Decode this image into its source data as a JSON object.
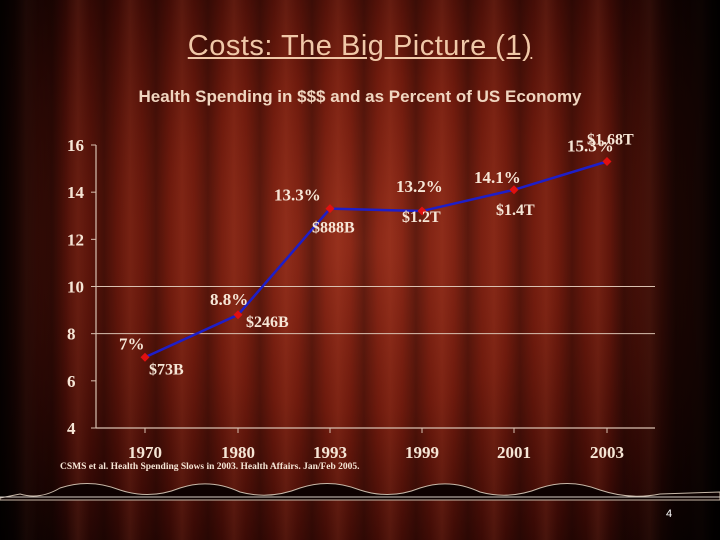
{
  "slide": {
    "title": "Costs: The Big Picture (1)",
    "subtitle": "Health Spending in $$$ and as Percent of US Economy",
    "source": "CSMS et al. Health Spending Slows in 2003. Health Affairs. Jan/Feb 2005.",
    "page_number": "4"
  },
  "colors": {
    "line": "#1e1ec8",
    "marker": "#e01010",
    "label": "#f6e6d6",
    "axis": "#d8c0b0"
  },
  "chart_data": {
    "type": "line",
    "title": "",
    "xlabel": "",
    "ylabel": "",
    "ylim": [
      4,
      16
    ],
    "yticks": [
      "16",
      "14",
      "12",
      "10",
      "8",
      "6",
      "4"
    ],
    "categories": [
      "1970",
      "1980",
      "1993",
      "1999",
      "2001",
      "2003"
    ],
    "series": [
      {
        "values": [
          7.0,
          8.8,
          13.3,
          13.2,
          14.1,
          15.3
        ],
        "percent_labels": [
          "7%",
          "8.8%",
          "13.3%",
          "13.2%",
          "14.1%",
          "15.3%"
        ],
        "dollar_labels": [
          "$73B",
          "$246B",
          "$888B",
          "$1.2T",
          "$1.4T",
          "$1.68T"
        ]
      }
    ],
    "grid": "horizontal gridlines at 10 and 8",
    "legend": "none"
  }
}
